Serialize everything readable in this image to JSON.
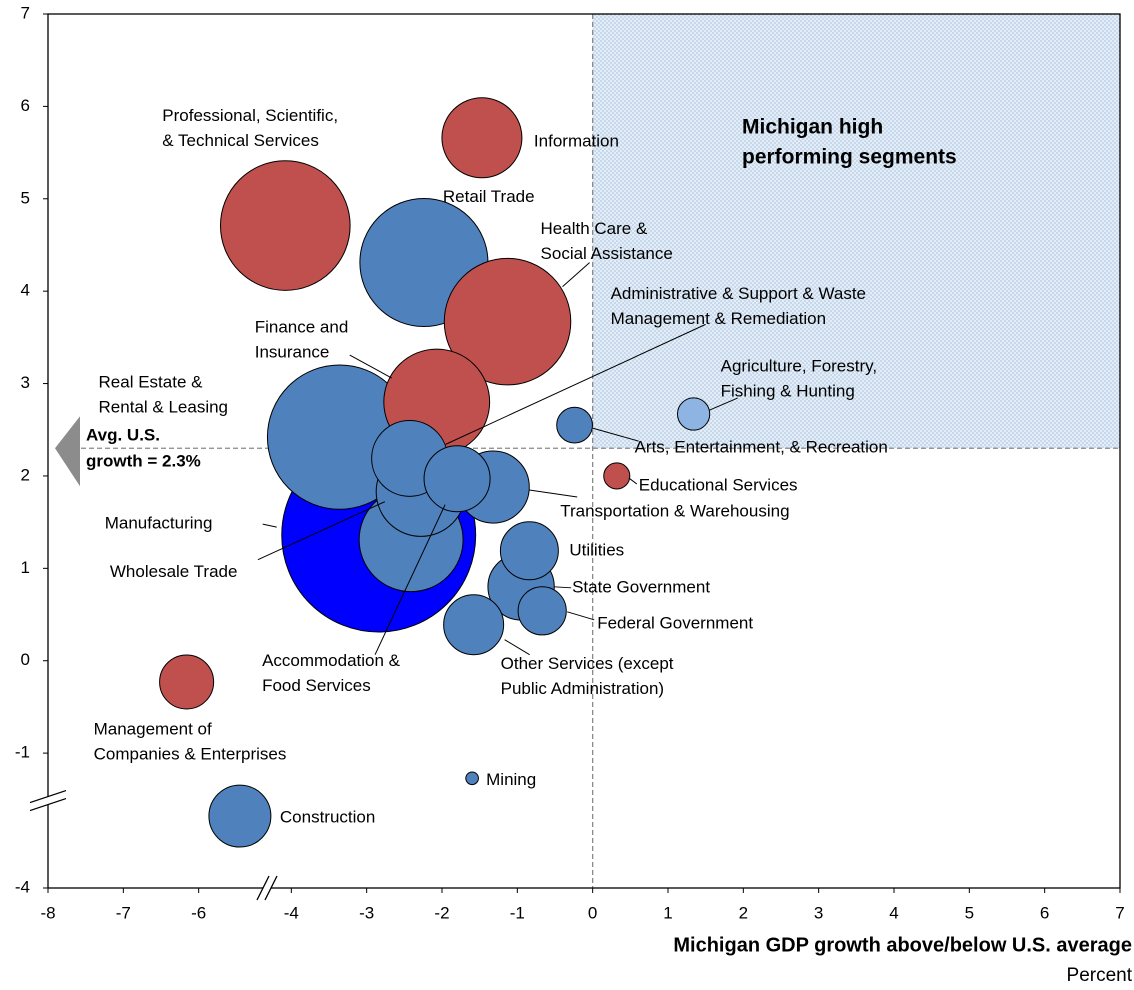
{
  "chart_data": {
    "type": "bubble",
    "xlabel": "Michigan GDP growth above/below U.S. average",
    "xunit": "Percent",
    "annotation": [
      "Michigan high",
      "performing segments"
    ],
    "avg_label": [
      "Avg. U.S.",
      "growth = 2.3%"
    ],
    "avg_us_growth": 2.3,
    "labels": [
      [
        "Professional, Scientific,",
        "& Technical Services"
      ],
      [
        "Information"
      ],
      [
        "Retail Trade"
      ],
      [
        "Health Care &",
        "Social Assistance"
      ],
      [
        "Administrative & Support & Waste",
        "Management & Remediation"
      ],
      [
        "Finance and",
        "Insurance"
      ],
      [
        "Real Estate &",
        "Rental & Leasing"
      ],
      [
        "Agriculture, Forestry,",
        "Fishing & Hunting"
      ],
      [
        "Arts, Entertainment, & Recreation"
      ],
      [
        "Educational Services"
      ],
      [
        "Transportation & Warehousing"
      ],
      [
        "Manufacturing"
      ],
      [
        "Wholesale Trade"
      ],
      [
        "Utilities"
      ],
      [
        "State Government"
      ],
      [
        "Federal Government"
      ],
      [
        "Accommodation &",
        "Food Services"
      ],
      [
        "Other Services (except",
        "Public Administration)"
      ],
      [
        "Management of",
        "Companies & Enterprises"
      ],
      [
        "Mining"
      ],
      [
        "Construction"
      ],
      null
    ],
    "x": [
      -4.13,
      -1.47,
      -2.24,
      -1.13,
      -2.43,
      -2.07,
      -3.36,
      1.34,
      -0.24,
      0.32,
      -1.32,
      -2.84,
      -2.28,
      -0.84,
      -0.95,
      -0.67,
      -1.8,
      -1.58,
      -6.16,
      -1.6,
      -5.11,
      -2.41
    ],
    "y": [
      4.71,
      5.66,
      4.31,
      3.67,
      2.19,
      2.8,
      2.42,
      2.67,
      2.55,
      2.0,
      1.88,
      1.36,
      1.83,
      1.19,
      0.8,
      0.54,
      1.97,
      0.39,
      -0.23,
      -1.56,
      -2.4,
      1.31
    ],
    "sizes": [
      42,
      16,
      41,
      40,
      14.4,
      28,
      52,
      2.6,
      3.2,
      1.7,
      13,
      94,
      20,
      8.4,
      11,
      5.8,
      10.9,
      9,
      7.3,
      0.4,
      9.6,
      27
    ],
    "colors": [
      "#c0504d",
      "#c0504d",
      "#4f81bd",
      "#c0504d",
      "#4f81bd",
      "#c0504d",
      "#4f81bd",
      "#8eb4e3",
      "#4f81bd",
      "#c0504d",
      "#4f81bd",
      "#0000ff",
      "#4f81bd",
      "#4f81bd",
      "#4f81bd",
      "#4f81bd",
      "#4f81bd",
      "#4f81bd",
      "#c0504d",
      "#4f81bd",
      "#4f81bd",
      "#4f81bd"
    ],
    "xlim": [
      -8,
      7
    ],
    "ylim": [
      -4,
      7
    ],
    "xticks": [
      -8,
      -7,
      -6,
      -4,
      -3,
      -2,
      -1,
      0,
      1,
      2,
      3,
      4,
      5,
      6,
      7
    ],
    "yticks": [
      -4,
      -1,
      0,
      1,
      2,
      3,
      4,
      5,
      6,
      7
    ],
    "xbreak": [
      -6,
      -4
    ],
    "ybreak": [
      -4,
      -1
    ]
  }
}
